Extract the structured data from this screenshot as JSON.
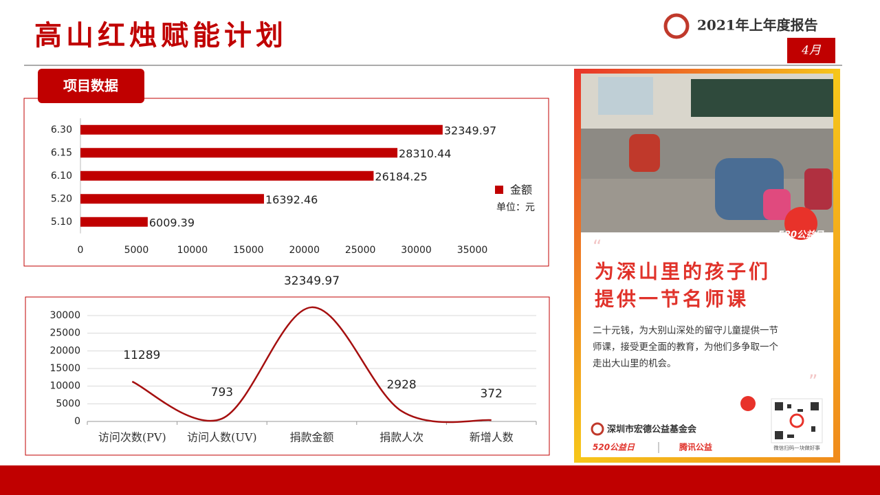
{
  "header": {
    "title": "高山红烛赋能计划",
    "report": "2021年上年度报告",
    "month": "4月",
    "section": "项目数据"
  },
  "chart_data": [
    {
      "type": "hbar",
      "categories": [
        "6.30",
        "6.15",
        "6.10",
        "5.20",
        "5.10"
      ],
      "series": [
        {
          "name": "金额",
          "color": "#c00000",
          "values": [
            32349.97,
            28310.44,
            26184.25,
            16392.46,
            6009.39
          ]
        }
      ],
      "unit_note": "单位：元",
      "xlim": [
        0,
        35000
      ],
      "xticks": [
        0,
        5000,
        10000,
        15000,
        20000,
        25000,
        30000,
        35000
      ],
      "grid": false,
      "legend": "right"
    },
    {
      "type": "line",
      "categories": [
        "访问次数(PV)",
        "访问人数(UV)",
        "捐款金额",
        "捐款人次",
        "新增人数"
      ],
      "values": [
        11289,
        793,
        32349.97,
        2928,
        372
      ],
      "color": "#a50f0f",
      "smooth": true,
      "ylim": [
        0,
        30000
      ],
      "yticks": [
        0,
        5000,
        10000,
        15000,
        20000,
        25000,
        30000
      ],
      "grid": true
    }
  ],
  "poster": {
    "badge": "520公益日",
    "headline": [
      "为深山里的孩子们",
      "提供一节名师课"
    ],
    "body": [
      "二十元钱，为大别山深处的留守儿童提供一节",
      "师课，接受更全面的教育，为他们多争取一个",
      "走出大山里的机会。"
    ],
    "org": "深圳市宏德公益基金会",
    "footer_left": "520公益日",
    "footer_right": "腾讯公益",
    "qr_caption": "微信扫码一块做好事"
  }
}
